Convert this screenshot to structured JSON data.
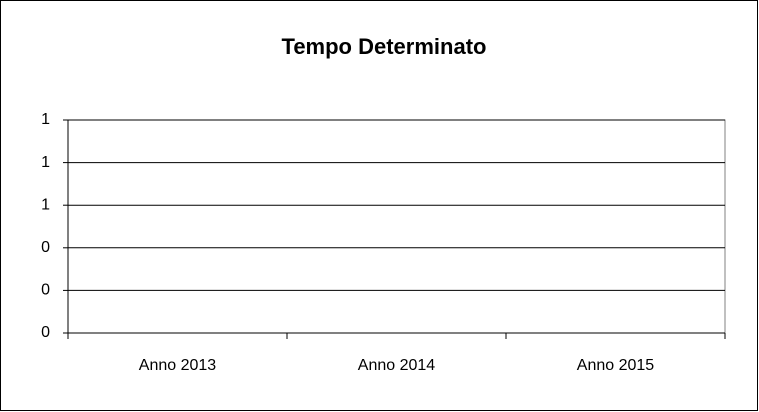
{
  "chart_data": {
    "type": "bar",
    "title": "Tempo Determinato",
    "categories": [
      "Anno 2013",
      "Anno 2014",
      "Anno 2015"
    ],
    "values": [
      0,
      0,
      0
    ],
    "color": "#9999ff",
    "ylim": [
      0,
      1
    ],
    "yticks": [
      0,
      {
        "value": 0.2,
        "label": "0"
      },
      {
        "value": 0.4,
        "label": "0"
      },
      {
        "value": 0.6,
        "label": "1"
      },
      {
        "value": 0.8,
        "label": "1"
      },
      1
    ],
    "grid": true
  }
}
